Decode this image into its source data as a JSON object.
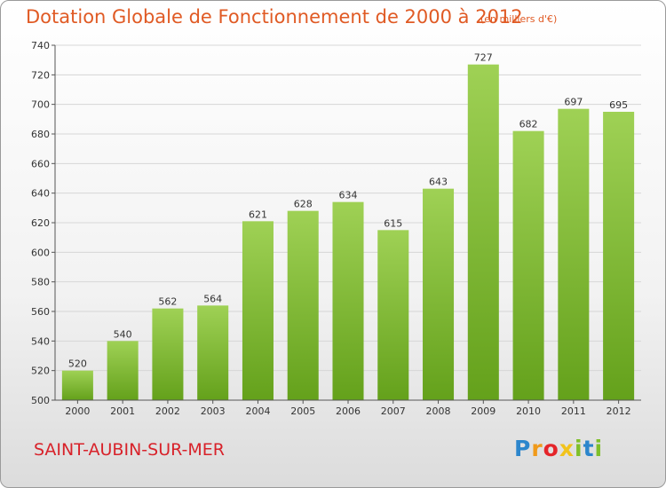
{
  "header": {
    "title": "Dotation Globale de Fonctionnement de 2000 à 2012",
    "unit": "(en milliers d'€)"
  },
  "footer": {
    "commune": "SAINT-AUBIN-SUR-MER",
    "logo": "Proxiti"
  },
  "colors": {
    "bar_top": "#9fd155",
    "bar_bottom": "#64a11b",
    "title": "#e05a24",
    "commune": "#d8222a"
  },
  "chart_data": {
    "type": "bar",
    "title": "Dotation Globale de Fonctionnement de 2000 à 2012",
    "subtitle": "(en milliers d'€)",
    "categories": [
      "2000",
      "2001",
      "2002",
      "2003",
      "2004",
      "2005",
      "2006",
      "2007",
      "2008",
      "2009",
      "2010",
      "2011",
      "2012"
    ],
    "values": [
      520,
      540,
      562,
      564,
      621,
      628,
      634,
      615,
      643,
      727,
      682,
      697,
      695
    ],
    "ylim": [
      500,
      740
    ],
    "yticks": [
      500,
      520,
      540,
      560,
      580,
      600,
      620,
      640,
      660,
      680,
      700,
      720,
      740
    ],
    "grid": true
  }
}
